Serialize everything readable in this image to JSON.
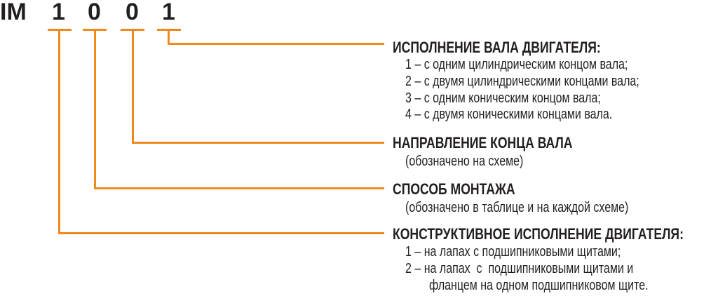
{
  "code": {
    "prefix": "IM",
    "digits": [
      "1",
      "0",
      "0",
      "1"
    ]
  },
  "accent_color": "#ef8a1e",
  "sections": [
    {
      "title": "ИСПОЛНЕНИЕ ВАЛА ДВИГАТЕЛЯ:",
      "lines": [
        "1 – с одним цилиндрическим концом вала;",
        "2 – с двумя цилиндрическими концами вала;",
        "3 – с одним коническим концом вала;",
        "4 – с двумя коническими концами вала."
      ]
    },
    {
      "title": "НАПРАВЛЕНИЕ КОНЦА ВАЛА",
      "lines": [
        "(обозначено на схеме)"
      ]
    },
    {
      "title": "СПОСОБ МОНТАЖА",
      "lines": [
        "(обозначено в таблице и на каждой схеме)"
      ]
    },
    {
      "title": "КОНСТРУКТИВНОЕ ИСПОЛНЕНИЕ ДВИГАТЕЛЯ:",
      "lines": [
        "1 – на лапах с подшипниковыми щитами;",
        "2 – на лапах  с  подшипниковыми щитами и",
        "фланцем на одном подшипниковом щите."
      ]
    }
  ]
}
